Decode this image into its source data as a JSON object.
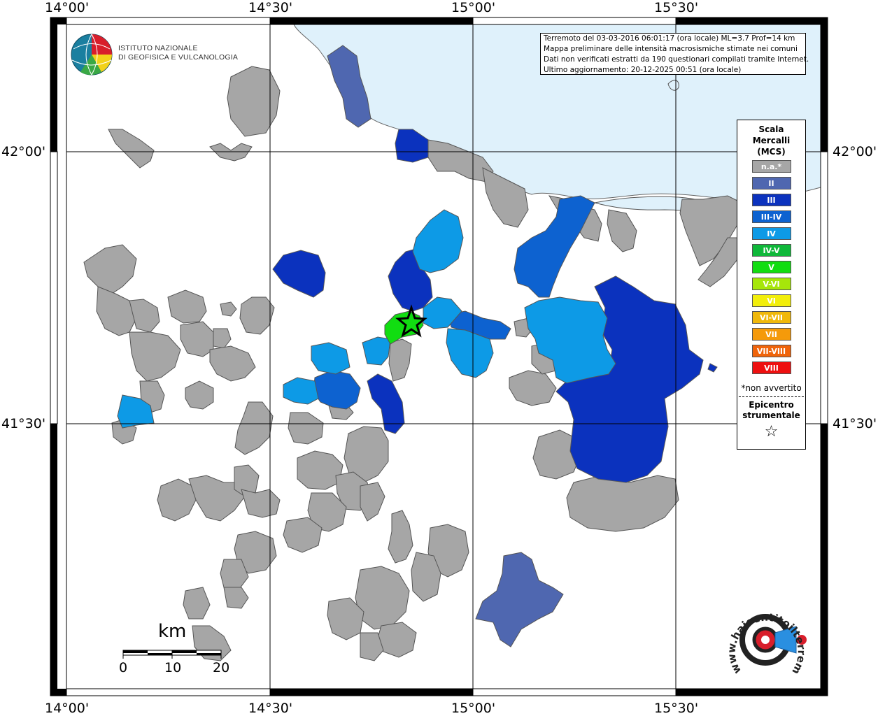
{
  "coordinates": {
    "top": [
      "14°00'",
      "14°30'",
      "15°00'",
      "15°30'"
    ],
    "bottom": [
      "14°00'",
      "14°30'",
      "15°00'",
      "15°30'"
    ],
    "left": [
      "42°00'",
      "41°30'"
    ],
    "right": [
      "42°00'",
      "41°30'"
    ]
  },
  "logo": {
    "line1": "ISTITUTO NAZIONALE",
    "line2": "DI GEOFISICA E VULCANOLOGIA"
  },
  "info": {
    "line1": "Terremoto del 03-03-2016 06:01:17 (ora locale) ML=3.7 Prof=14 km",
    "line2": "Mappa preliminare delle intensità macrosismiche stimate nei comuni",
    "line3": "Dati non verificati estratti da 190 questionari compilati tramite Internet.",
    "line4": "Ultimo aggiornamento: 20-12-2025 00:51 (ora locale)"
  },
  "legend": {
    "title_line1": "Scala",
    "title_line2": "Mercalli",
    "title_line3": "(MCS)",
    "items": [
      {
        "label": "n.a.*",
        "color": "#a6a6a6"
      },
      {
        "label": "II",
        "color": "#4f67b0"
      },
      {
        "label": "III",
        "color": "#0b32be"
      },
      {
        "label": "III-IV",
        "color": "#0d62d0"
      },
      {
        "label": "IV",
        "color": "#0d9ae6"
      },
      {
        "label": "IV-V",
        "color": "#0fb83a"
      },
      {
        "label": "V",
        "color": "#11dd11"
      },
      {
        "label": "V-VI",
        "color": "#a6e60a"
      },
      {
        "label": "VI",
        "color": "#f2ee0a"
      },
      {
        "label": "VI-VII",
        "color": "#f0b80a"
      },
      {
        "label": "VII",
        "color": "#f59a0a"
      },
      {
        "label": "VII-VIII",
        "color": "#f0640a"
      },
      {
        "label": "VIII",
        "color": "#ee1010"
      }
    ],
    "note": "*non avvertito",
    "epicenter_line1": "Epicentro",
    "epicenter_line2": "strumentale",
    "star": "☆"
  },
  "scale_bar": {
    "unit": "km",
    "ticks": [
      "0",
      "10",
      "20"
    ]
  },
  "badge": {
    "url_text": "www.haisentitoilterremoto.it"
  },
  "colors": {
    "sea": "#dff1fb",
    "not_available": "#a6a6a6",
    "intensity_II": "#4f67b0",
    "intensity_III": "#0b32be",
    "intensity_III_IV": "#0d62d0",
    "intensity_IV": "#0d9ae6",
    "intensity_V": "#11dd11"
  }
}
